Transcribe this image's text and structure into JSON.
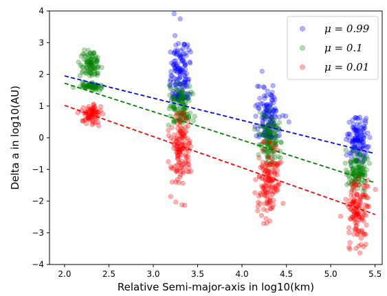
{
  "chart_data": {
    "type": "scatter",
    "xlabel": "Relative Semi-major-axis in log10(km)",
    "ylabel": "Delta a in log10(AU)",
    "xlim": [
      1.83,
      5.58
    ],
    "ylim": [
      -4,
      4
    ],
    "xticks": [
      "2.0",
      "2.5",
      "3.0",
      "3.5",
      "4.0",
      "4.5",
      "5.0",
      "5.5"
    ],
    "yticks": [
      "−4",
      "−3",
      "−2",
      "−1",
      "0",
      "1",
      "2",
      "3",
      "4"
    ],
    "grid": false,
    "legend_position": "top-right",
    "series": [
      {
        "name": "μ = 0.99",
        "legend_text": "μ = 0.99",
        "color": "#0000ff",
        "fit_line": {
          "x": [
            2.0,
            5.5
          ],
          "y": [
            1.95,
            -0.5
          ]
        },
        "clusters": [
          {
            "x_center": 3.3,
            "x_spread": 0.06,
            "y_center": 1.9,
            "y_spread": 0.7,
            "y_min": 1.2,
            "y_max": 4.0
          },
          {
            "x_center": 4.3,
            "x_spread": 0.06,
            "y_center": 0.6,
            "y_spread": 0.5,
            "y_min": 0.0,
            "y_max": 2.5
          },
          {
            "x_center": 5.3,
            "x_spread": 0.06,
            "y_center": -0.1,
            "y_spread": 0.4,
            "y_min": -0.8,
            "y_max": 0.65
          }
        ]
      },
      {
        "name": "μ = 0.1",
        "legend_text": "μ = 0.1",
        "color": "#008000",
        "fit_line": {
          "x": [
            2.0,
            5.5
          ],
          "y": [
            1.72,
            -1.42
          ]
        },
        "clusters": [
          {
            "x_center": 2.3,
            "x_spread": 0.05,
            "y_center": 2.35,
            "y_spread": 0.22,
            "y_min": 1.95,
            "y_max": 2.8
          },
          {
            "x_center": 2.3,
            "x_spread": 0.05,
            "y_center": 1.62,
            "y_spread": 0.06,
            "y_min": 1.45,
            "y_max": 1.8
          },
          {
            "x_center": 3.3,
            "x_spread": 0.06,
            "y_center": 1.0,
            "y_spread": 0.35,
            "y_min": 0.2,
            "y_max": 1.8
          },
          {
            "x_center": 4.3,
            "x_spread": 0.06,
            "y_center": -0.05,
            "y_spread": 0.4,
            "y_min": -1.0,
            "y_max": 0.9
          },
          {
            "x_center": 5.3,
            "x_spread": 0.06,
            "y_center": -1.1,
            "y_spread": 0.35,
            "y_min": -2.0,
            "y_max": -0.3
          }
        ]
      },
      {
        "name": "μ = 0.01",
        "legend_text": "μ = 0.01",
        "color": "#ff0000",
        "fit_line": {
          "x": [
            2.0,
            5.5
          ],
          "y": [
            1.02,
            -2.42
          ]
        },
        "clusters": [
          {
            "x_center": 2.3,
            "x_spread": 0.05,
            "y_center": 0.75,
            "y_spread": 0.14,
            "y_min": 0.05,
            "y_max": 1.1
          },
          {
            "x_center": 3.3,
            "x_spread": 0.06,
            "y_center": -0.3,
            "y_spread": 0.55,
            "y_min": -2.2,
            "y_max": 0.8
          },
          {
            "x_center": 4.3,
            "x_spread": 0.06,
            "y_center": -1.4,
            "y_spread": 0.55,
            "y_min": -3.6,
            "y_max": -0.1
          },
          {
            "x_center": 5.3,
            "x_spread": 0.06,
            "y_center": -2.3,
            "y_spread": 0.5,
            "y_min": -3.95,
            "y_max": -1.1
          }
        ]
      }
    ]
  }
}
